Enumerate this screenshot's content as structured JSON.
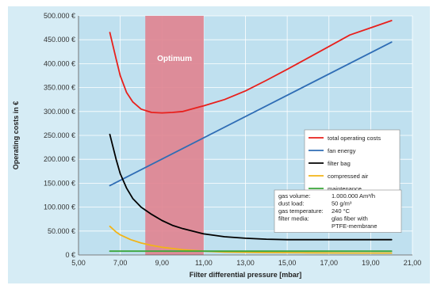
{
  "chart_data": {
    "type": "line",
    "xlabel": "Filter differential pressure [mbar]",
    "ylabel": "Operating costs in €",
    "xlim": [
      5,
      21
    ],
    "ylim": [
      0,
      500000
    ],
    "x_ticks": [
      "5,00",
      "7,00",
      "9,00",
      "11,00",
      "13,00",
      "15,00",
      "17,00",
      "19,00",
      "21,00"
    ],
    "y_ticks": [
      "0 €",
      "50.000 €",
      "100.000 €",
      "150.000 €",
      "200.000 €",
      "250.000 €",
      "300.000 €",
      "350.000 €",
      "400.000 €",
      "450.000 €",
      "500.000 €"
    ],
    "optimum": {
      "label": "Optimum",
      "x_range": [
        8.2,
        11.0
      ]
    },
    "legend_position": "right",
    "series": [
      {
        "name": "total operating costs",
        "color": "#e8201c",
        "x": [
          6.5,
          6.8,
          7.0,
          7.3,
          7.6,
          8.0,
          8.5,
          9.0,
          9.5,
          10.0,
          11.0,
          12.0,
          13.0,
          14.0,
          15.0,
          16.0,
          17.0,
          18.0,
          19.0,
          20.0
        ],
        "y": [
          465000,
          410000,
          375000,
          340000,
          320000,
          305000,
          298000,
          297000,
          298000,
          300000,
          312000,
          325000,
          343000,
          365000,
          388000,
          412000,
          436000,
          460000,
          475000,
          490000
        ]
      },
      {
        "name": "fan energy",
        "color": "#2f6db5",
        "x": [
          6.5,
          20.0
        ],
        "y": [
          145000,
          445000
        ]
      },
      {
        "name": "filter bag",
        "color": "#000000",
        "x": [
          6.5,
          6.8,
          7.0,
          7.3,
          7.6,
          8.0,
          8.5,
          9.0,
          9.5,
          10.0,
          11.0,
          12.0,
          13.0,
          14.0,
          15.0,
          16.0,
          17.0,
          18.0,
          19.0,
          20.0
        ],
        "y": [
          252000,
          200000,
          170000,
          140000,
          118000,
          100000,
          85000,
          72000,
          62000,
          55000,
          44000,
          38000,
          35000,
          33000,
          32000,
          32000,
          32000,
          32000,
          32000,
          32000
        ]
      },
      {
        "name": "compressed air",
        "color": "#f2b417",
        "x": [
          6.5,
          6.8,
          7.0,
          7.5,
          8.0,
          8.5,
          9.0,
          10.0,
          11.0,
          12.0,
          14.0,
          16.0,
          18.0,
          20.0
        ],
        "y": [
          60000,
          48000,
          42000,
          32000,
          25000,
          20000,
          16000,
          11000,
          8000,
          6000,
          5000,
          4500,
          4000,
          4000
        ]
      },
      {
        "name": "maintenance",
        "color": "#3aa63a",
        "x": [
          6.5,
          20.0
        ],
        "y": [
          8000,
          8000
        ]
      }
    ],
    "info_box": {
      "rows": [
        {
          "label": "gas volume:",
          "value": "1.000.000 Am³/h"
        },
        {
          "label": "dust load:",
          "value": "50 g/m³"
        },
        {
          "label": "gas temperature:",
          "value": "240 °C"
        },
        {
          "label": "filter media:",
          "value": "glas fiber with"
        },
        {
          "label": "",
          "value": "PTFE-membrane"
        }
      ]
    }
  },
  "colors": {
    "frame_bg": "#d6ecf5",
    "plot_bg": "#bfe0ef",
    "grid": "#ffffff",
    "optimum_fill": "#e0838f"
  }
}
